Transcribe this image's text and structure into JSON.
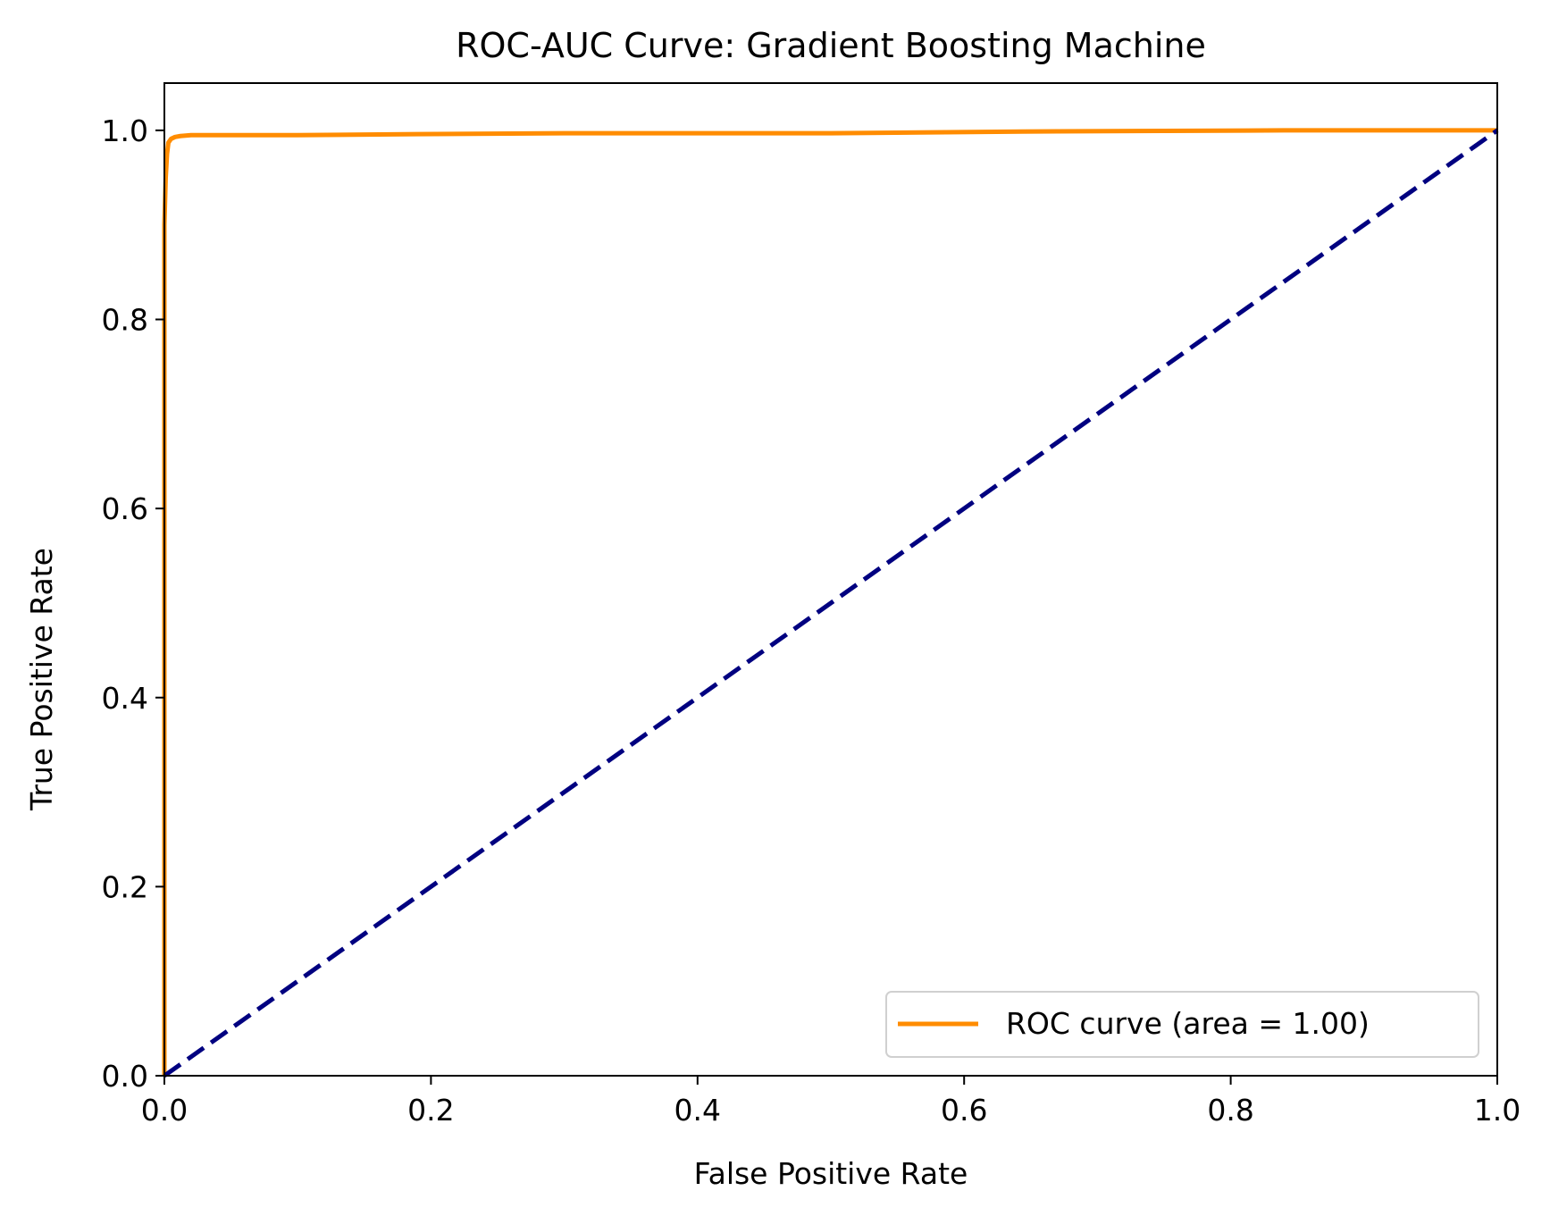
{
  "chart_data": {
    "type": "line",
    "title": "ROC-AUC Curve: Gradient Boosting Machine",
    "xlabel": "False Positive Rate",
    "ylabel": "True Positive Rate",
    "xlim": [
      0.0,
      1.0
    ],
    "ylim": [
      0.0,
      1.05
    ],
    "xticks": [
      0.0,
      0.2,
      0.4,
      0.6,
      0.8,
      1.0
    ],
    "yticks": [
      0.0,
      0.2,
      0.4,
      0.6,
      0.8,
      1.0
    ],
    "xtick_labels": [
      "0.0",
      "0.2",
      "0.4",
      "0.6",
      "0.8",
      "1.0"
    ],
    "ytick_labels": [
      "0.0",
      "0.2",
      "0.4",
      "0.6",
      "0.8",
      "1.0"
    ],
    "grid": false,
    "legend_position": "bottom-right",
    "series": [
      {
        "name": "ROC curve (area = 1.00)",
        "color": "#ff8c00",
        "line_style": "solid",
        "x": [
          0.0,
          0.0,
          0.001,
          0.002,
          0.003,
          0.005,
          0.008,
          0.012,
          0.02,
          0.05,
          0.1,
          0.19,
          0.3,
          0.5,
          0.67,
          0.84,
          1.0
        ],
        "y": [
          0.0,
          0.9,
          0.95,
          0.975,
          0.987,
          0.991,
          0.993,
          0.994,
          0.995,
          0.995,
          0.995,
          0.996,
          0.997,
          0.997,
          0.999,
          1.0,
          1.0
        ]
      },
      {
        "name": "",
        "color": "#000080",
        "line_style": "dashed",
        "x": [
          0.0,
          1.0
        ],
        "y": [
          0.0,
          1.0
        ]
      }
    ]
  }
}
